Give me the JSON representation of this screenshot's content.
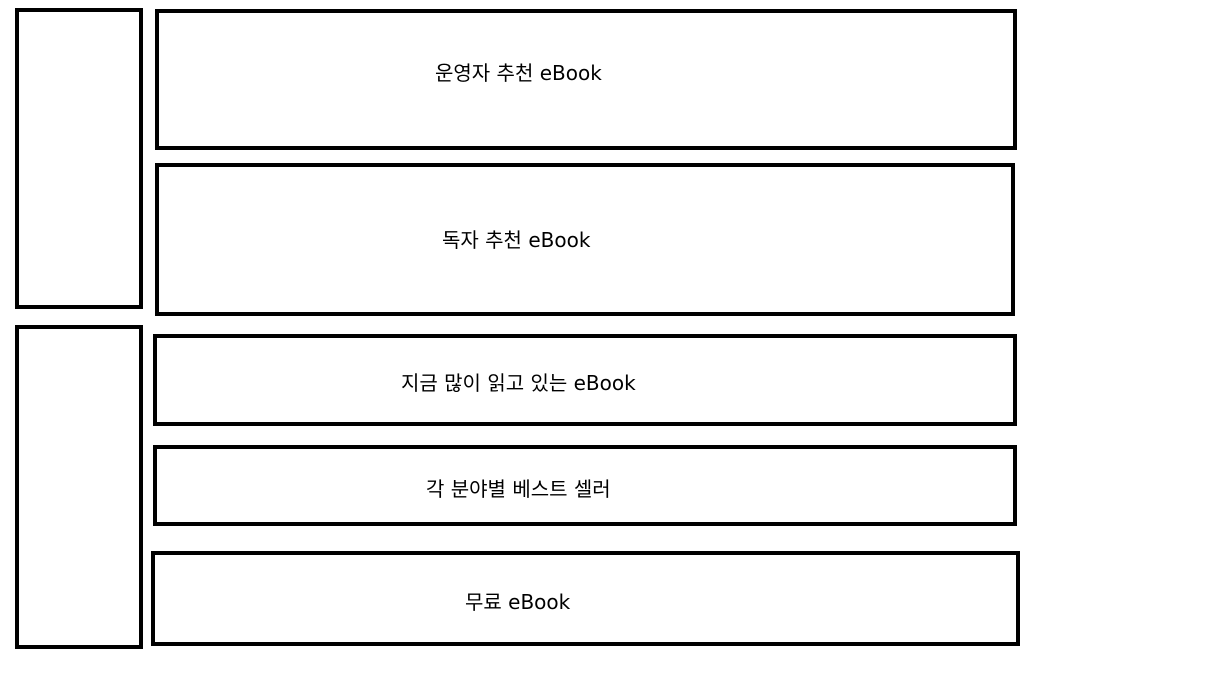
{
  "sections": [
    {
      "id": "operator-recommended",
      "label": "운영자 추천 eBook"
    },
    {
      "id": "reader-recommended",
      "label": "독자 추천 eBook"
    },
    {
      "id": "popular-now",
      "label": "지금 많이 읽고 있는 eBook"
    },
    {
      "id": "bestseller-by-category",
      "label": "각 분야별 베스트 셀러"
    },
    {
      "id": "free",
      "label": "무료 eBook"
    }
  ],
  "colors": {
    "border": "#000000",
    "background": "#ffffff",
    "text": "#000000"
  }
}
